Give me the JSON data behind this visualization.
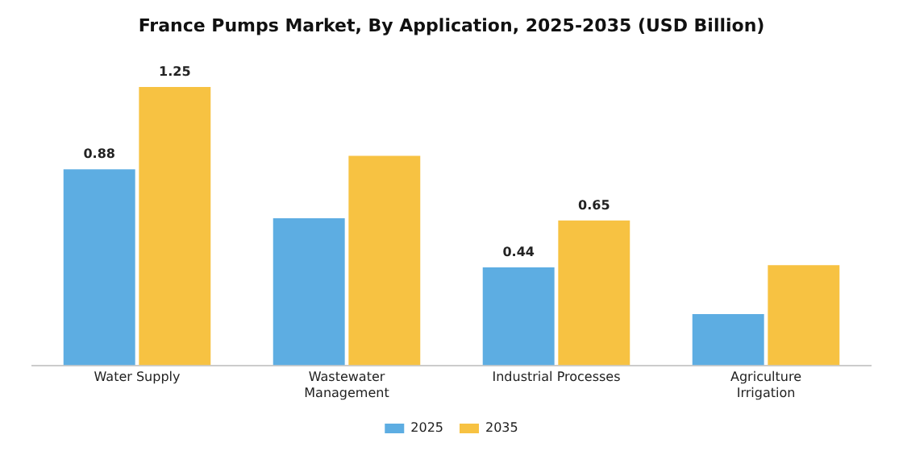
{
  "chart_data": {
    "type": "bar",
    "title": "France Pumps Market, By Application, 2025-2035 (USD Billion)",
    "categories": [
      "Water Supply",
      "Wastewater Management",
      "Industrial Processes",
      "Agriculture Irrigation"
    ],
    "series": [
      {
        "name": "2025",
        "color": "#5dade2",
        "values": [
          0.88,
          0.66,
          0.44,
          0.23
        ],
        "value_labels": [
          "0.88",
          null,
          "0.44",
          null
        ]
      },
      {
        "name": "2035",
        "color": "#f7c242",
        "values": [
          1.25,
          0.94,
          0.65,
          0.45
        ],
        "value_labels": [
          "1.25",
          null,
          "0.65",
          null
        ]
      }
    ],
    "legend": "bottom",
    "grid": false
  }
}
